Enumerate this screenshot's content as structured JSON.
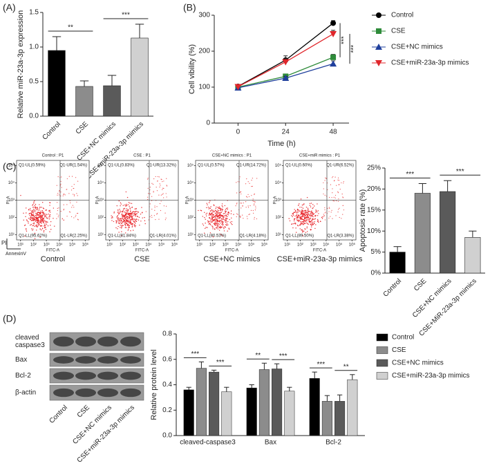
{
  "chart_data": [
    {
      "type": "bar",
      "panel_label": "(A)",
      "ylabel": "Relative miR-23a-3p expression",
      "categories": [
        "Control",
        "CSE",
        "CSE+NC mimics",
        "CSE+miR-23a-3p mimics"
      ],
      "values": [
        0.95,
        0.43,
        0.44,
        1.13
      ],
      "errors": [
        0.2,
        0.08,
        0.15,
        0.2
      ],
      "colors": [
        "#000000",
        "#8c8c8c",
        "#5a5a5a",
        "#d0d0d0"
      ],
      "ylim": [
        0,
        1.5
      ],
      "yticks": [
        {
          "value": 0,
          "label": "0.0"
        },
        0.5,
        {
          "value": 1,
          "label": "1.0"
        },
        1.5
      ],
      "annotations": [
        "**",
        "***"
      ]
    },
    {
      "type": "line",
      "panel_label": "(B)",
      "ylabel": "Cell vibility (%)",
      "xlabel": "Time (h)",
      "x": [
        0,
        24,
        48
      ],
      "xlim": [
        -12,
        56
      ],
      "xticks": [
        0,
        24,
        48
      ],
      "ylim": [
        0,
        300
      ],
      "yticks": [
        0,
        100,
        200,
        300
      ],
      "series": [
        {
          "name": "Control",
          "color": "#000000",
          "marker": "o",
          "values": [
            102,
            175,
            278
          ],
          "errors": [
            5,
            12,
            7
          ]
        },
        {
          "name": "CSE",
          "color": "#2e8b3a",
          "marker": "s",
          "values": [
            100,
            130,
            183
          ],
          "errors": [
            4,
            6,
            8
          ]
        },
        {
          "name": "CSE+NC mimics",
          "color": "#1f3f9c",
          "marker": "^",
          "values": [
            98,
            125,
            165
          ],
          "errors": [
            4,
            5,
            8
          ]
        },
        {
          "name": "CSE+miR-23a-3p mimics",
          "color": "#e0262b",
          "marker": "v",
          "values": [
            101,
            170,
            248
          ],
          "errors": [
            5,
            10,
            10
          ]
        }
      ],
      "annotations": [
        "***",
        "***"
      ]
    },
    {
      "type": "flow",
      "panel_label": "(C)",
      "xlabel": "FITC-A",
      "ylabel": "PI-A",
      "x_marker": "AnnexinV",
      "y_marker": "PI",
      "log": true,
      "xlim": [
        5,
        2000000
      ],
      "ylim": [
        5,
        200000
      ],
      "xticks": [
        {
          "value": 10,
          "label": "10¹"
        },
        {
          "value": 100,
          "label": "10²"
        },
        {
          "value": 1000,
          "label": "10³"
        },
        {
          "value": 10000,
          "label": "10⁴"
        },
        {
          "value": 100000,
          "label": "10⁵"
        },
        {
          "value": 1000000,
          "label": "10⁶"
        }
      ],
      "yticks": [
        {
          "value": 10,
          "label": "10¹"
        },
        {
          "value": 100,
          "label": "10²"
        },
        {
          "value": 1000,
          "label": "10³"
        },
        {
          "value": 10000,
          "label": "10⁴"
        },
        {
          "value": 100000,
          "label": "10⁵"
        }
      ],
      "plots": [
        {
          "title": "Control : P1",
          "caption": "Control",
          "quadrants": [
            "Q1-UL(0.59%)",
            "Q1-UR(1.54%)",
            "Q1-LL(95.62%)",
            "Q1-LR(2.25%)"
          ]
        },
        {
          "title": "CSE : P1",
          "caption": "CSE",
          "quadrants": [
            "Q1-UL(0.83%)",
            "Q1-UR(13.32%)",
            "Q1-LL(81.84%)",
            "Q1-LR(4.01%)"
          ]
        },
        {
          "title": "CSE+NC mimics : P1",
          "caption": "CSE+NC mimics",
          "quadrants": [
            "Q1-UL(0.57%)",
            "Q1-UR(14.72%)",
            "Q1-LL(80.53%)",
            "Q1-LR(4.18%)"
          ]
        },
        {
          "title": "CSE+miR mimics : P1",
          "caption": "CSE+miR-23a-3p mimics",
          "quadrants": [
            "Q1-UL(0.60%)",
            "Q1-UR(6.52%)",
            "Q1-LL(89.50%)",
            "Q1-LR(3.38%)"
          ]
        }
      ]
    },
    {
      "type": "bar",
      "ylabel": "Apoptosis rate (%)",
      "categories": [
        "Control",
        "CSE",
        "CSE+NC mimics",
        "CSE+MiR-23a-3p mimics"
      ],
      "values": [
        5,
        19,
        19.4,
        8.5
      ],
      "errors": [
        1.3,
        2.3,
        2.6,
        1.5
      ],
      "colors": [
        "#000000",
        "#8c8c8c",
        "#5a5a5a",
        "#d0d0d0"
      ],
      "ylim": [
        0,
        25
      ],
      "yticks": [
        {
          "value": 0,
          "label": "0%"
        },
        {
          "value": 5,
          "label": "5%"
        },
        {
          "value": 10,
          "label": "10%"
        },
        {
          "value": 15,
          "label": "15%"
        },
        {
          "value": 20,
          "label": "20%"
        },
        {
          "value": 25,
          "label": "25%"
        }
      ],
      "annotations": [
        "***",
        "***"
      ]
    },
    {
      "type": "blot",
      "panel_label": "(D)",
      "rows": [
        [
          "cleaved",
          "caspase3"
        ],
        [
          "Bax"
        ],
        [
          "Bcl-2"
        ],
        [
          "β-actin"
        ]
      ],
      "lanes": [
        "Control",
        "CSE",
        "CSE+NC mimics",
        "CSE+miR-23a-3p mimics"
      ]
    },
    {
      "type": "grouped-bar",
      "ylabel": "Relative protein level",
      "categories": [
        "cleaved-caspase3",
        "Bax",
        "Bcl-2"
      ],
      "ylim": [
        0,
        0.8
      ],
      "yticks": [
        {
          "value": 0,
          "label": "0.0"
        },
        0.2,
        0.4,
        0.6,
        0.8
      ],
      "series": [
        {
          "name": "Control",
          "color": "#000000",
          "values": [
            0.36,
            0.375,
            0.45
          ],
          "errors": [
            0.02,
            0.025,
            0.05
          ]
        },
        {
          "name": "CSE",
          "color": "#8c8c8c",
          "values": [
            0.53,
            0.52,
            0.27
          ],
          "errors": [
            0.05,
            0.05,
            0.045
          ]
        },
        {
          "name": "CSE+NC mimics",
          "color": "#5a5a5a",
          "values": [
            0.5,
            0.525,
            0.27
          ],
          "errors": [
            0.015,
            0.04,
            0.05
          ]
        },
        {
          "name": "CSE+miR-23a-3p mimics",
          "color": "#d0d0d0",
          "values": [
            0.345,
            0.35,
            0.44
          ],
          "errors": [
            0.035,
            0.03,
            0.04
          ]
        }
      ],
      "annotations": [
        "***",
        "***",
        "**",
        "***",
        "***",
        "**"
      ]
    }
  ]
}
